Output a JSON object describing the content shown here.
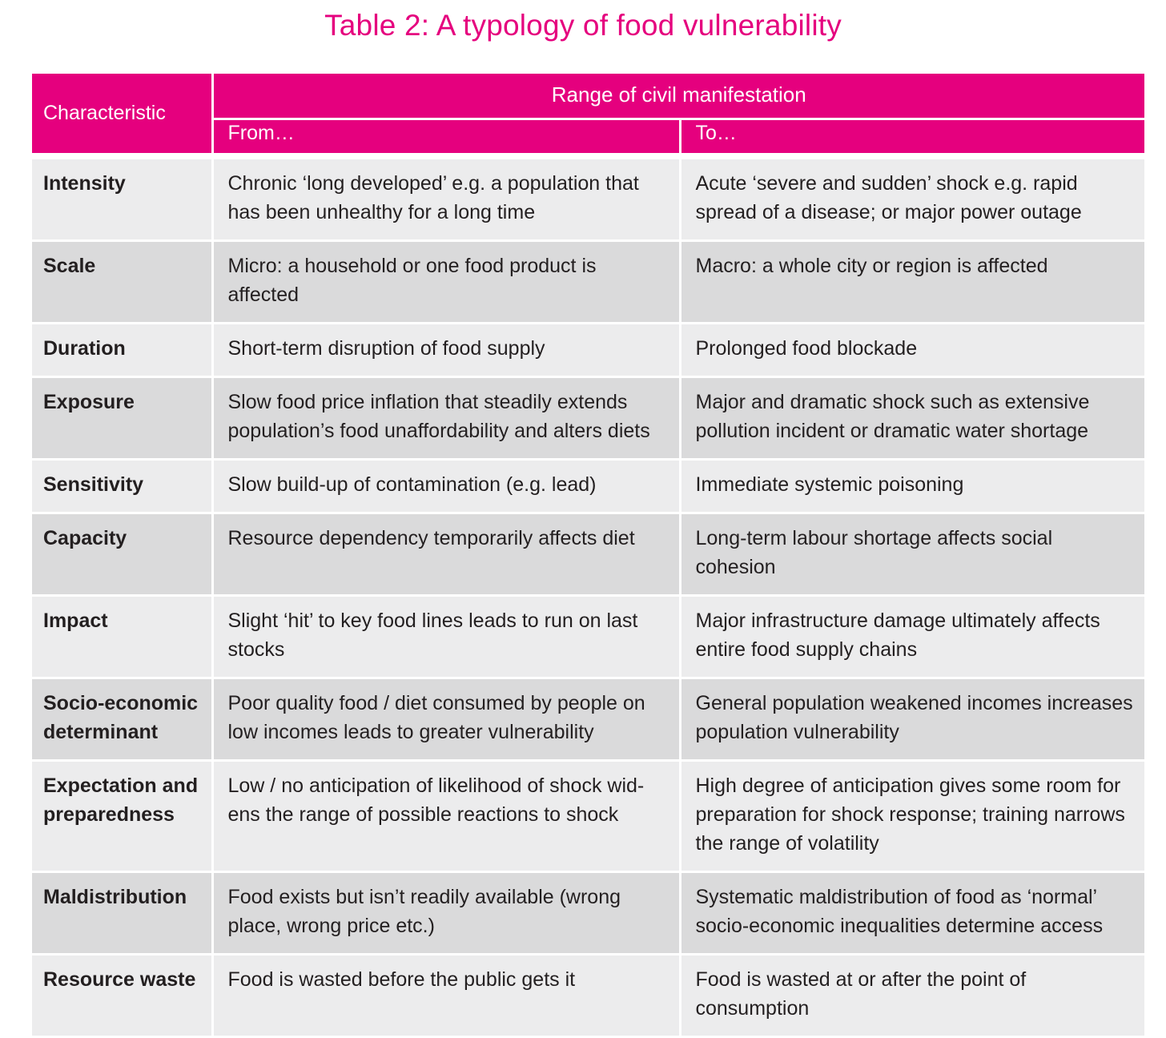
{
  "title": "Table 2: A typology of food vulnerability",
  "accent_color": "#e5007e",
  "header": {
    "characteristic": "Characteristic",
    "range": "Range of civil manifestation",
    "from": "From…",
    "to": "To…"
  },
  "rows": [
    {
      "characteristic": "Intensity",
      "from": "Chronic ‘long developed’ e.g. a population that has been unhealthy for a long time",
      "to": "Acute ‘severe and sudden’ shock e.g. rapid spread of a disease; or major power outage"
    },
    {
      "characteristic": "Scale",
      "from": "Micro: a household or one food product is affected",
      "to": "Macro: a whole city or region is affected"
    },
    {
      "characteristic": "Duration",
      "from": "Short-term disruption of food supply",
      "to": "Prolonged food blockade"
    },
    {
      "characteristic": "Exposure",
      "from": "Slow food price inflation that steadily extends population’s food unaffordability and alters diets",
      "to": "Major and dramatic shock such as extensive pollution incident or dramatic water shortage"
    },
    {
      "characteristic": "Sensitivity",
      "from": "Slow build-up of contamination (e.g. lead)",
      "to": "Immediate systemic poisoning"
    },
    {
      "characteristic": "Capacity",
      "from": "Resource dependency temporarily affects diet",
      "to": "Long-term labour shortage affects social cohesion"
    },
    {
      "characteristic": "Impact",
      "from": "Slight ‘hit’ to key food lines leads to run on last stocks",
      "to": "Major infrastructure damage ultimately affects entire food supply chains"
    },
    {
      "characteristic": "Socio-economic determinant",
      "from": "Poor quality food / diet consumed by people on low incomes leads to greater vulnerability",
      "to": "General population weakened incomes increases population vulnerability"
    },
    {
      "characteristic": "Expectation and preparedness",
      "from": "Low / no anticipation of likelihood of shock wid- ens the range of possible reactions to shock",
      "to": "High degree of anticipation gives some room for preparation for shock response; training narrows the range of volatility"
    },
    {
      "characteristic": "Maldistribution",
      "from": "Food exists but isn’t readily available (wrong place, wrong price etc.)",
      "to": "Systematic maldistribution of food as ‘normal’ socio-economic inequalities determine access"
    },
    {
      "characteristic": "Resource waste",
      "from": "Food is wasted before the public gets it",
      "to": "Food is wasted at or after the point of consumption"
    }
  ]
}
